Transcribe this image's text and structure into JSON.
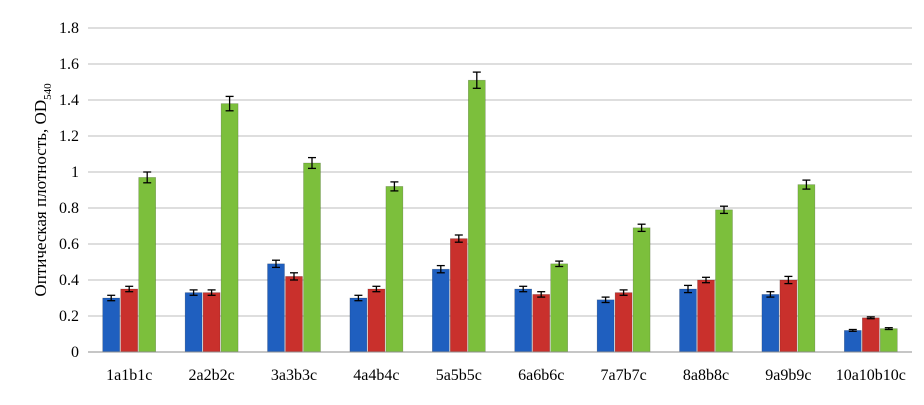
{
  "chart_data": {
    "type": "bar",
    "title": "",
    "xlabel": "",
    "ylabel": "Оптическая плотность, OD",
    "ylabel_subscript": "540",
    "ylim": [
      0,
      1.8
    ],
    "yticks": [
      "0",
      "0.2",
      "0.4",
      "0.6",
      "0.8",
      "1",
      "1.2",
      "1.4",
      "1.6",
      "1.8"
    ],
    "grid": true,
    "legend": "none",
    "categories": [
      "1a1b1c",
      "2a2b2c",
      "3a3b3c",
      "4a4b4c",
      "5a5b5c",
      "6a6b6c",
      "7a7b7c",
      "8a8b8c",
      "9a9b9c",
      "10a10b10c"
    ],
    "series": [
      {
        "color": "#1f5fbf",
        "values": [
          0.3,
          0.33,
          0.49,
          0.3,
          0.46,
          0.35,
          0.29,
          0.35,
          0.32,
          0.12
        ],
        "errors": [
          0.015,
          0.015,
          0.02,
          0.015,
          0.02,
          0.015,
          0.015,
          0.02,
          0.015,
          0.005
        ]
      },
      {
        "color": "#c9302c",
        "values": [
          0.35,
          0.33,
          0.42,
          0.35,
          0.63,
          0.32,
          0.33,
          0.4,
          0.4,
          0.19
        ],
        "errors": [
          0.015,
          0.015,
          0.02,
          0.015,
          0.02,
          0.015,
          0.015,
          0.015,
          0.02,
          0.005
        ]
      },
      {
        "color": "#7cbf3c",
        "values": [
          0.97,
          1.38,
          1.05,
          0.92,
          1.51,
          0.49,
          0.69,
          0.79,
          0.93,
          0.13
        ],
        "errors": [
          0.03,
          0.04,
          0.03,
          0.025,
          0.045,
          0.015,
          0.02,
          0.02,
          0.025,
          0.005
        ]
      }
    ]
  }
}
